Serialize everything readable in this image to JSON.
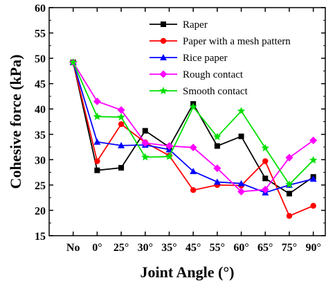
{
  "chart_data": {
    "type": "line",
    "xlabel": "Joint Angle (°)",
    "ylabel": "Cohesive force (kPa)",
    "ylim": [
      15,
      60
    ],
    "yticks": [
      15,
      20,
      25,
      30,
      35,
      40,
      45,
      50,
      55,
      60
    ],
    "categories": [
      "No",
      "0°",
      "25°",
      "30°",
      "35°",
      "45°",
      "55°",
      "60°",
      "65°",
      "75°",
      "90°"
    ],
    "legend_position": "top-right",
    "grid": false,
    "series": [
      {
        "name": "Raper",
        "color": "#000000",
        "marker": "square",
        "values": [
          49.2,
          27.9,
          28.4,
          35.7,
          32.5,
          41.0,
          32.7,
          34.6,
          26.3,
          23.3,
          26.6
        ]
      },
      {
        "name": "Paper with a mesh pattern",
        "color": "#ff0000",
        "marker": "circle",
        "values": [
          49.2,
          29.7,
          37.0,
          33.4,
          30.8,
          24.0,
          25.0,
          24.9,
          29.7,
          18.9,
          20.9
        ]
      },
      {
        "name": "Rice paper",
        "color": "#0000ff",
        "marker": "triangle",
        "values": [
          49.2,
          33.5,
          32.8,
          32.9,
          32.0,
          27.7,
          25.6,
          25.3,
          23.5,
          25.0,
          26.2
        ]
      },
      {
        "name": "Rough contact",
        "color": "#ff00ff",
        "marker": "diamond",
        "values": [
          49.2,
          41.5,
          39.8,
          33.3,
          32.7,
          32.4,
          28.3,
          23.7,
          24.1,
          30.4,
          33.8
        ]
      },
      {
        "name": "Smooth contact",
        "color": "#00e000",
        "marker": "star",
        "values": [
          49.2,
          38.5,
          38.4,
          30.5,
          30.6,
          40.4,
          34.5,
          39.6,
          32.3,
          25.1,
          29.9
        ]
      }
    ]
  }
}
